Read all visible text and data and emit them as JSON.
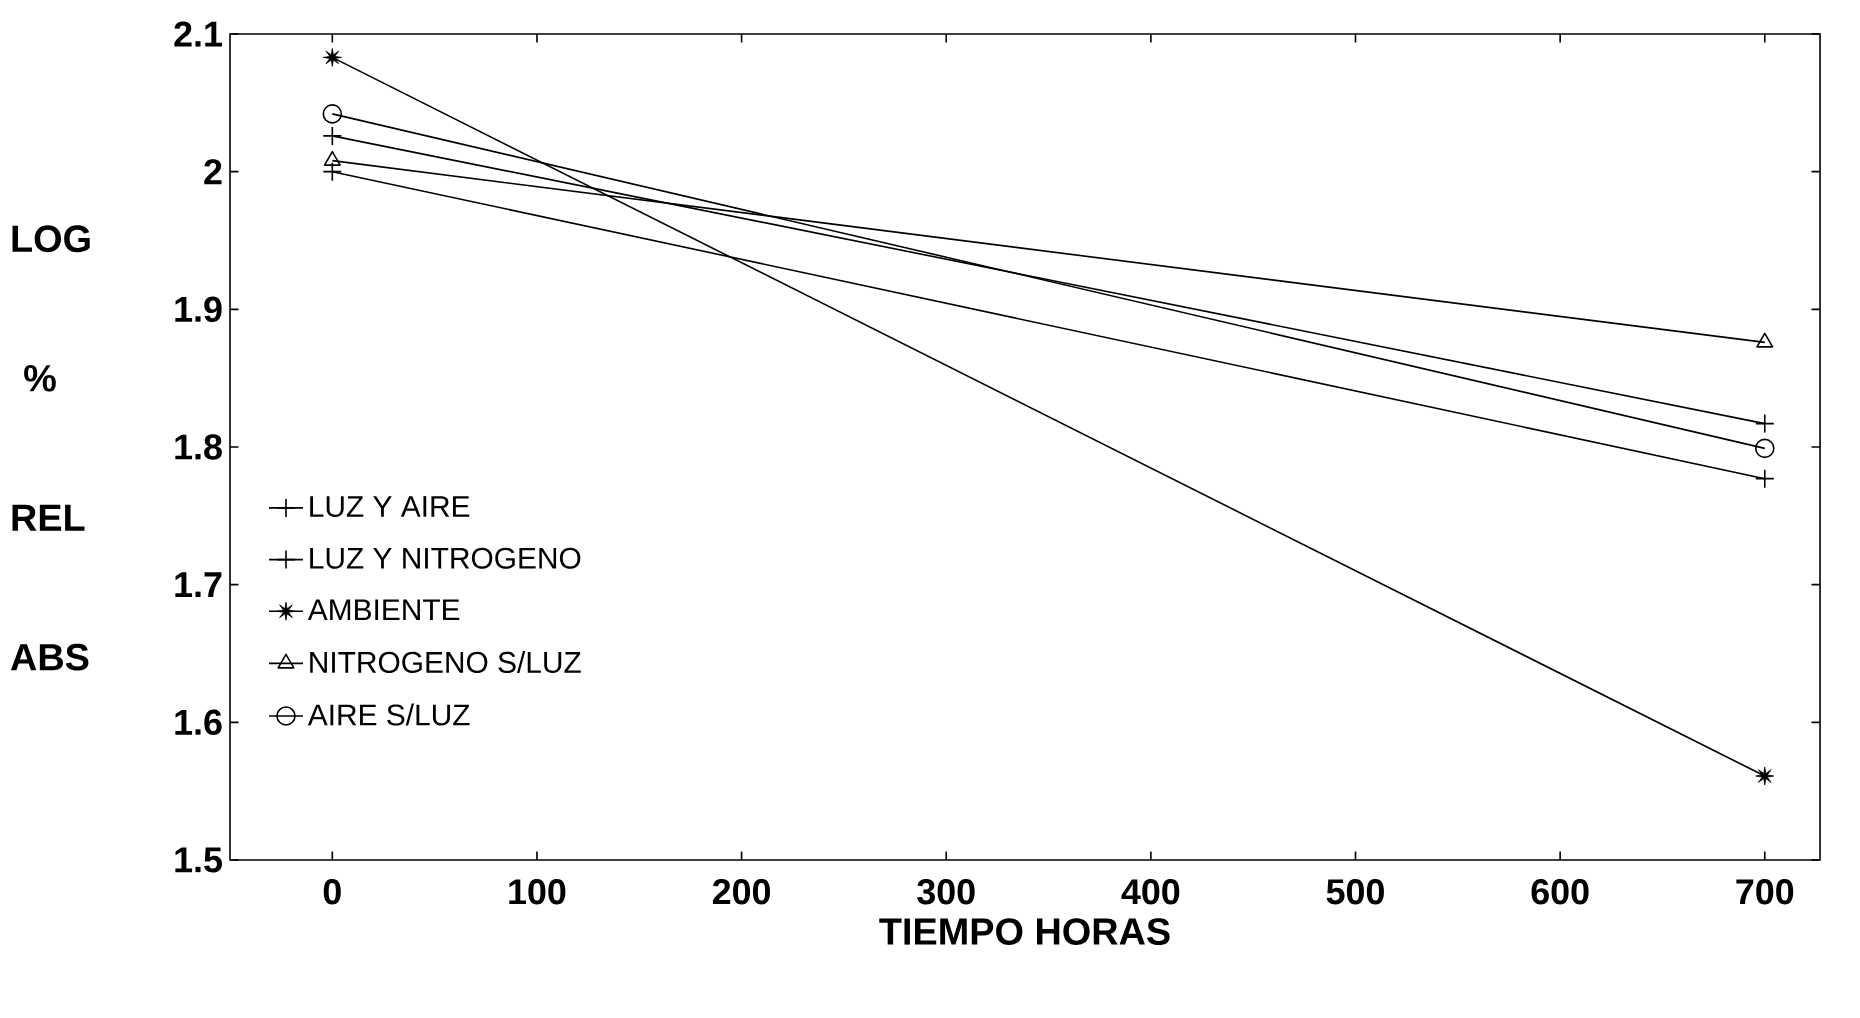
{
  "chart_data": {
    "type": "line",
    "xlabel": "TIEMPO    HORAS",
    "ylabel": "LOG % REL ABS",
    "x": [
      0,
      700
    ],
    "series": [
      {
        "name": "LUZ Y AIRE",
        "color": "#000000",
        "marker": "cross",
        "values": [
          2.0,
          1.777
        ]
      },
      {
        "name": "LUZ Y NITROGENO",
        "color": "#000000",
        "marker": "cross",
        "values": [
          2.026,
          1.817
        ]
      },
      {
        "name": "AMBIENTE",
        "color": "#000000",
        "marker": "star",
        "values": [
          2.083,
          1.561
        ]
      },
      {
        "name": "NITROGENO S/LUZ",
        "color": "#000000",
        "marker": "triangle",
        "values": [
          2.008,
          1.876
        ]
      },
      {
        "name": "AIRE S/LUZ",
        "color": "#000000",
        "marker": "circle",
        "values": [
          2.042,
          1.799
        ]
      }
    ],
    "xlim": [
      -50,
      727
    ],
    "ylim": [
      1.5,
      2.1
    ],
    "xticks": [
      0,
      100,
      200,
      300,
      400,
      500,
      600,
      700
    ],
    "yticks": [
      1.5,
      1.6,
      1.7,
      1.8,
      1.9,
      {
        "value": 2,
        "label": "2"
      },
      2.1
    ],
    "grid": false,
    "legend": "left",
    "line_style": "solid"
  }
}
